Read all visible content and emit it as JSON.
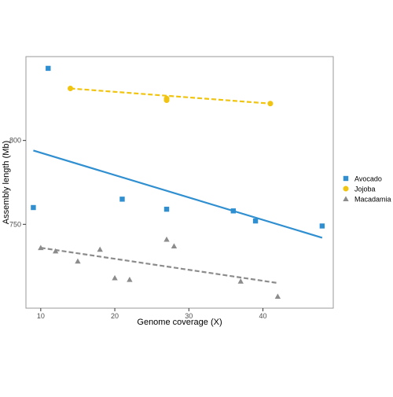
{
  "chart_data": {
    "type": "scatter",
    "xlabel": "Genome coverage (X)",
    "ylabel": "Assembly length (Mb)",
    "xlim": [
      8,
      49.5
    ],
    "ylim": [
      700,
      850
    ],
    "x_ticks": [
      10,
      20,
      30,
      40
    ],
    "y_ticks": [
      750,
      800
    ],
    "grid": false,
    "legend_position": "right",
    "series": [
      {
        "name": "Avocado",
        "marker": "square",
        "color": "#2f8fd0",
        "line_style": "solid",
        "points": [
          {
            "x": 9,
            "y": 760
          },
          {
            "x": 11,
            "y": 843
          },
          {
            "x": 21,
            "y": 765
          },
          {
            "x": 27,
            "y": 759
          },
          {
            "x": 36,
            "y": 758
          },
          {
            "x": 39,
            "y": 752
          },
          {
            "x": 48,
            "y": 749
          }
        ],
        "trend": [
          {
            "x": 9,
            "y": 794
          },
          {
            "x": 48,
            "y": 742
          }
        ]
      },
      {
        "name": "Jojoba",
        "marker": "circle",
        "color": "#f1c40f",
        "line_style": "dashed",
        "points": [
          {
            "x": 14,
            "y": 831
          },
          {
            "x": 27,
            "y": 825
          },
          {
            "x": 27,
            "y": 824
          },
          {
            "x": 41,
            "y": 822
          }
        ],
        "trend": [
          {
            "x": 14,
            "y": 831
          },
          {
            "x": 41,
            "y": 822
          }
        ]
      },
      {
        "name": "Macadamia",
        "marker": "triangle",
        "color": "#8c8c8c",
        "line_style": "dashed",
        "points": [
          {
            "x": 10,
            "y": 736
          },
          {
            "x": 12,
            "y": 734
          },
          {
            "x": 15,
            "y": 728
          },
          {
            "x": 18,
            "y": 735
          },
          {
            "x": 20,
            "y": 718
          },
          {
            "x": 22,
            "y": 717
          },
          {
            "x": 27,
            "y": 741
          },
          {
            "x": 28,
            "y": 737
          },
          {
            "x": 37,
            "y": 716
          },
          {
            "x": 42,
            "y": 707
          }
        ],
        "trend": [
          {
            "x": 10,
            "y": 736
          },
          {
            "x": 42,
            "y": 715
          }
        ]
      }
    ]
  }
}
